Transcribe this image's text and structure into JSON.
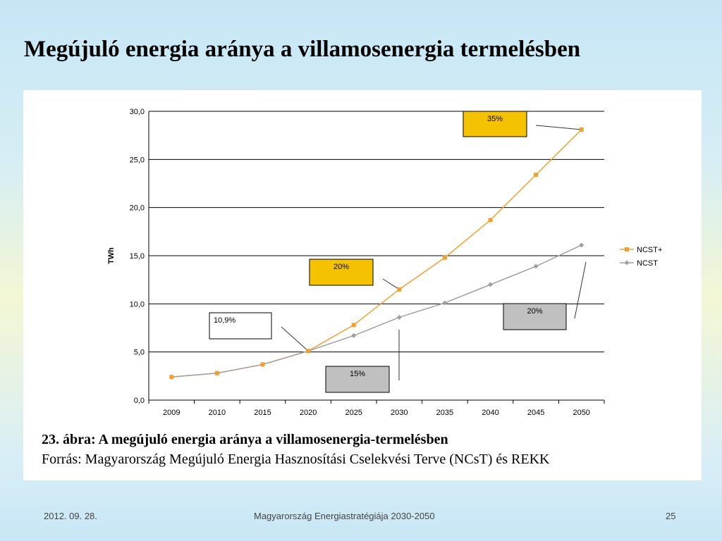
{
  "slide": {
    "title": "Megújuló energia aránya a villamosenergia termelésben",
    "caption": "23. ábra: A megújuló energia aránya a villamosenergia-termelésben",
    "source": "Forrás: Magyarország Megújuló Energia Hasznosítási Cselekvési Terve (NCsT) és REKK",
    "footer": {
      "date": "2012. 09. 28.",
      "center": "Magyarország Energiastratégiája 2030-2050",
      "page": "25"
    }
  },
  "chart_data": {
    "type": "line",
    "title": "",
    "xlabel": "",
    "ylabel": "TWh",
    "categories": [
      "2009",
      "2010",
      "2015",
      "2020",
      "2025",
      "2030",
      "2035",
      "2040",
      "2045",
      "2050"
    ],
    "ylim": [
      0,
      30
    ],
    "yticks": [
      0,
      5,
      10,
      15,
      20,
      25,
      30
    ],
    "ytick_labels": [
      "0,0",
      "5,0",
      "10,0",
      "15,0",
      "20,0",
      "25,0",
      "30,0"
    ],
    "grid": true,
    "legend_position": "right",
    "series": [
      {
        "name": "NCST+",
        "color": "#f0a030",
        "marker": "square",
        "values": [
          2.4,
          2.8,
          3.7,
          5.1,
          7.8,
          11.5,
          14.8,
          18.7,
          23.4,
          28.1
        ]
      },
      {
        "name": "NCST",
        "color": "#a0a0a0",
        "marker": "diamond",
        "values": [
          2.4,
          2.8,
          3.7,
          5.1,
          6.7,
          8.6,
          10.1,
          12.0,
          13.9,
          16.1
        ]
      }
    ],
    "annotations": [
      {
        "text": "35%",
        "fill": "#f5c200",
        "target_series": 0,
        "target_index": 9
      },
      {
        "text": "20%",
        "fill": "#f5c200",
        "target_series": 0,
        "target_index": 5
      },
      {
        "text": "10,9%",
        "fill": "#ffffff",
        "target_series": 0,
        "target_index": 3
      },
      {
        "text": "15%",
        "fill": "#c0c0c0",
        "target_series": 1,
        "target_index": 5
      },
      {
        "text": "20%",
        "fill": "#c0c0c0",
        "target_series": 1,
        "target_index": 9
      }
    ]
  }
}
